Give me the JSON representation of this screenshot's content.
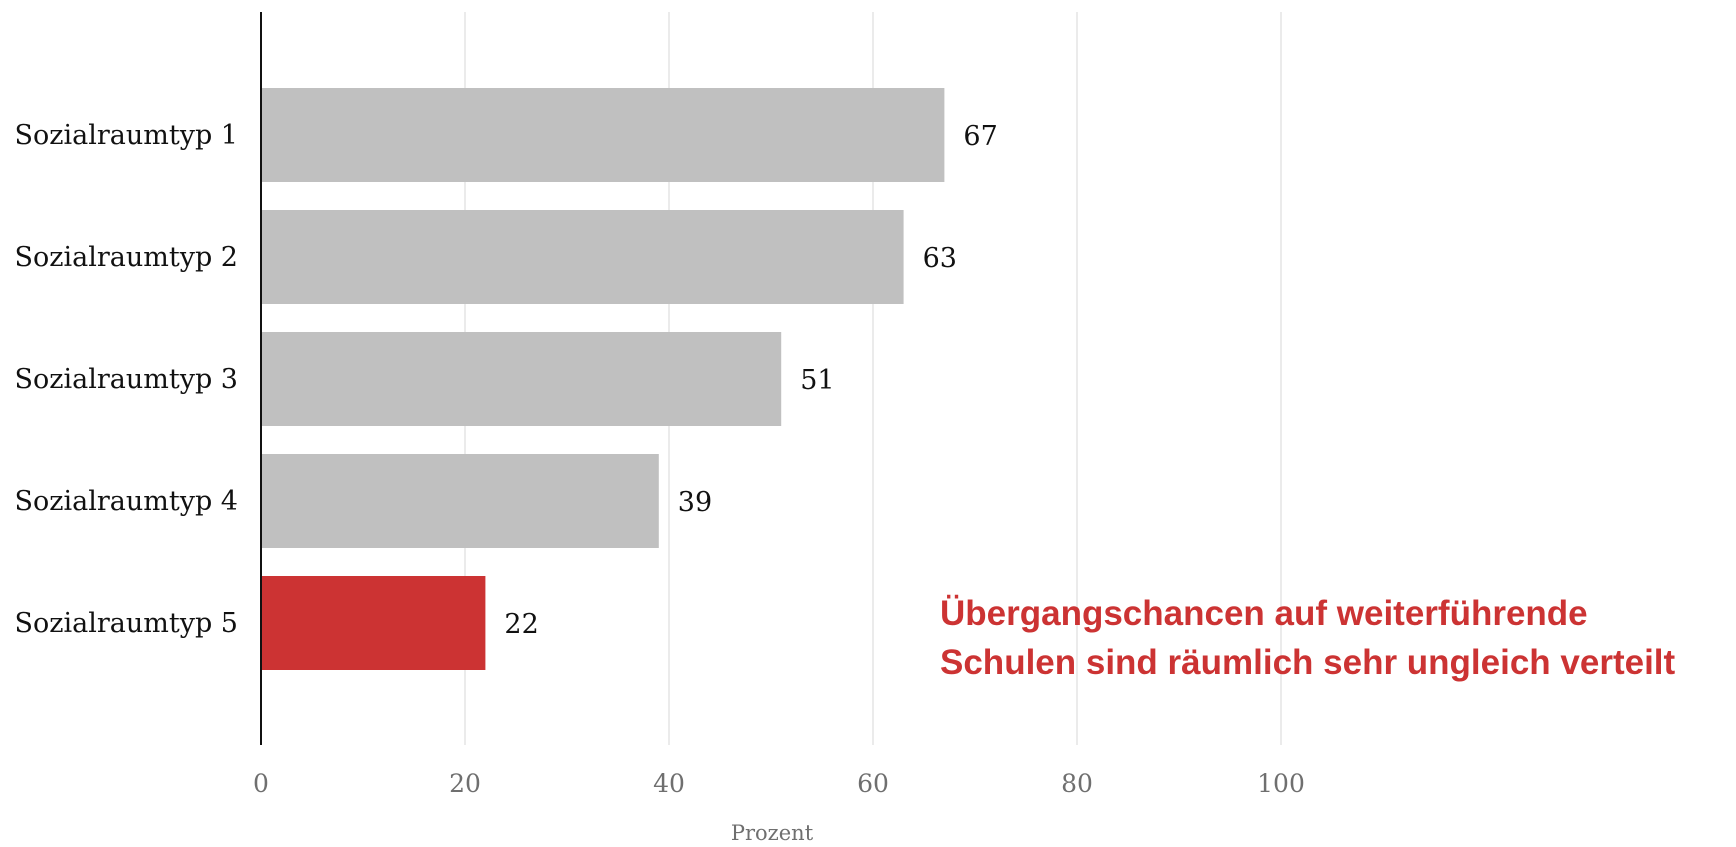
{
  "chart_data": {
    "type": "bar",
    "orientation": "horizontal",
    "categories": [
      "Sozialraumtyp 1",
      "Sozialraumtyp 2",
      "Sozialraumtyp 3",
      "Sozialraumtyp 4",
      "Sozialraumtyp 5"
    ],
    "values": [
      67,
      63,
      51,
      39,
      22
    ],
    "value_labels": [
      "67",
      "63",
      "51",
      "39",
      "22"
    ],
    "bar_colors": [
      "#c0c0c0",
      "#c0c0c0",
      "#c0c0c0",
      "#c0c0c0",
      "#cc3333"
    ],
    "xlabel": "Prozent",
    "ylabel": "",
    "xlim": [
      0,
      100
    ],
    "xticks": [
      0,
      20,
      40,
      60,
      80,
      100
    ],
    "xtick_labels": [
      "0",
      "20",
      "40",
      "60",
      "80",
      "100"
    ],
    "grid": "vertical",
    "legend": "none",
    "annotation": {
      "lines": [
        "Übergangschancen auf weiterführende",
        "Schulen sind räumlich sehr ungleich verteilt"
      ],
      "color": "#cc3333"
    }
  },
  "colors": {
    "bar_default": "#c0c0c0",
    "bar_highlight": "#cc3333",
    "grid": "#ebebeb",
    "axis": "#111111",
    "tick_text": "#6f6f6f"
  }
}
